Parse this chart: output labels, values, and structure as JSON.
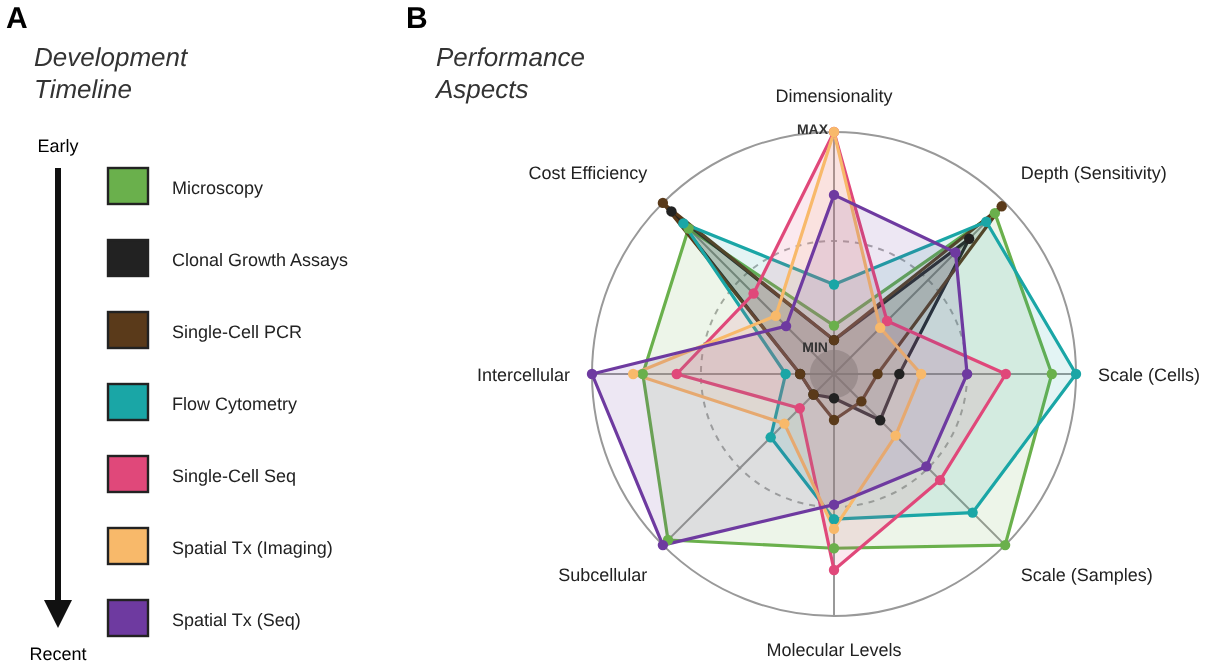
{
  "chart_data": {
    "type": "radar",
    "title": "Performance Aspects",
    "legend_title": "Development Timeline",
    "legend": "left",
    "annotations": [
      "A",
      "B",
      "Early",
      "Recent"
    ],
    "categories": [
      "Dimensionality",
      "Depth (Sensitivity)",
      "Scale (Cells)",
      "Scale (Samples)",
      "Molecular Levels",
      "Subcellular",
      "Intercellular",
      "Cost Efficiency"
    ],
    "ylim": [
      0,
      1
    ],
    "yticks": [
      {
        "value": 0.1,
        "label": "MIN"
      },
      {
        "value": 1,
        "label": "MAX"
      }
    ],
    "grid": true,
    "marker": "circle",
    "series": [
      {
        "name": "Microscopy",
        "color": "#6ab04c",
        "values": [
          0.2,
          0.94,
          0.9,
          1.0,
          0.72,
          0.97,
          0.79,
          0.85
        ]
      },
      {
        "name": "Clonal Growth Assays",
        "color": "#222222",
        "values": [
          0.14,
          0.79,
          0.27,
          0.27,
          0.1,
          0.12,
          0.14,
          0.95
        ]
      },
      {
        "name": "Single-Cell PCR",
        "color": "#5a3a1a",
        "values": [
          0.14,
          0.98,
          0.18,
          0.16,
          0.19,
          0.12,
          0.14,
          1.0
        ]
      },
      {
        "name": "Flow Cytometry",
        "color": "#1aa6a6",
        "values": [
          0.37,
          0.89,
          1.0,
          0.81,
          0.6,
          0.37,
          0.2,
          0.88
        ]
      },
      {
        "name": "Single-Cell Seq",
        "color": "#e0487a",
        "values": [
          1.0,
          0.31,
          0.71,
          0.62,
          0.81,
          0.2,
          0.65,
          0.47
        ]
      },
      {
        "name": "Spatial Tx (Imaging)",
        "color": "#f8b96a",
        "values": [
          1.0,
          0.27,
          0.36,
          0.36,
          0.64,
          0.29,
          0.83,
          0.34
        ]
      },
      {
        "name": "Spatial Tx (Seq)",
        "color": "#6e3aa0",
        "values": [
          0.74,
          0.71,
          0.55,
          0.54,
          0.54,
          1.0,
          1.0,
          0.28
        ]
      }
    ]
  }
}
